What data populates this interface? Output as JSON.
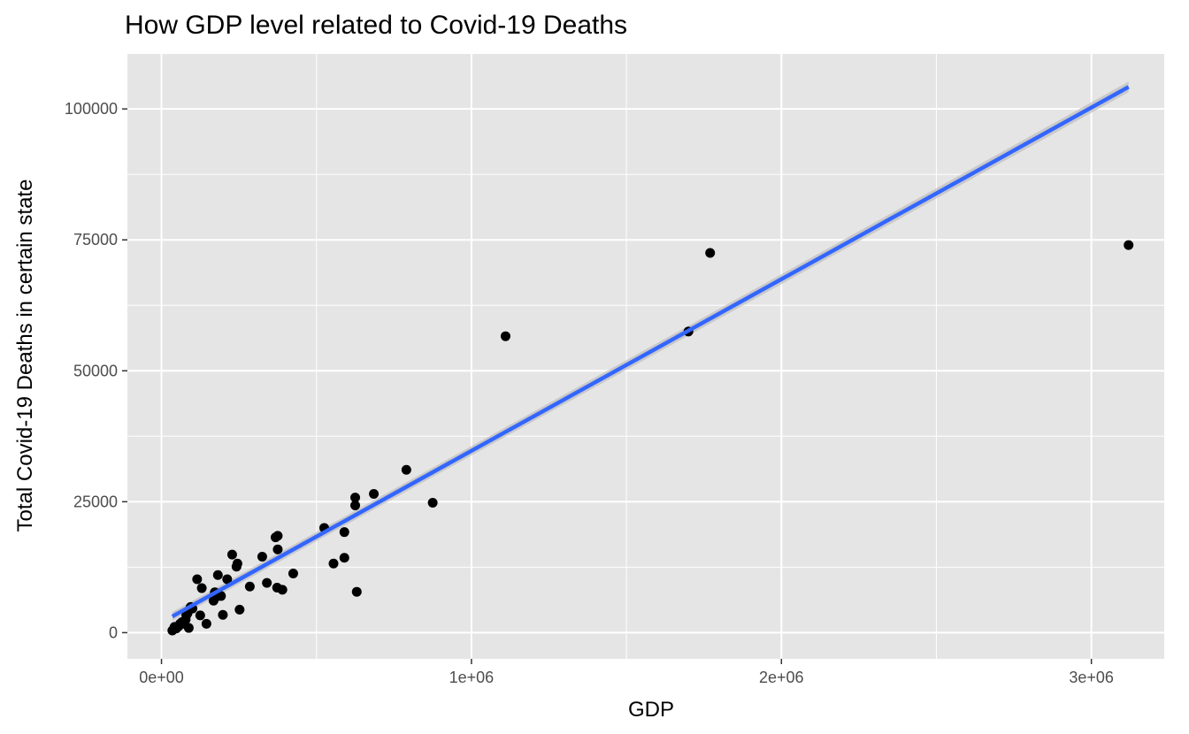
{
  "chart_data": {
    "type": "scatter",
    "title": "How GDP level related to Covid-19 Deaths",
    "xlabel": "GDP",
    "ylabel": "Total Covid-19 Deaths in certain state",
    "xlim": [
      -110000,
      3235000
    ],
    "ylim": [
      -5000,
      110500
    ],
    "x_ticks": [
      0,
      1000000,
      2000000,
      3000000
    ],
    "x_tick_labels": [
      "0e+00",
      "1e+06",
      "2e+06",
      "3e+06"
    ],
    "y_ticks": [
      0,
      25000,
      50000,
      75000,
      100000
    ],
    "y_tick_labels": [
      "0",
      "25000",
      "50000",
      "75000",
      "100000"
    ],
    "grid": true,
    "panel_background": "#e5e5e5",
    "grid_color": "#ffffff",
    "point_color": "#000000",
    "trend_color": "#3366ff",
    "ribbon_color": "#bdbdbd",
    "points": [
      [
        3120000,
        74000
      ],
      [
        1770000,
        72500
      ],
      [
        1700000,
        57500
      ],
      [
        1110000,
        56600
      ],
      [
        875000,
        24800
      ],
      [
        790000,
        31100
      ],
      [
        685000,
        26500
      ],
      [
        625000,
        25800
      ],
      [
        625000,
        24300
      ],
      [
        630000,
        7800
      ],
      [
        590000,
        19200
      ],
      [
        590000,
        14300
      ],
      [
        555000,
        13200
      ],
      [
        525000,
        20000
      ],
      [
        425000,
        11300
      ],
      [
        390000,
        8200
      ],
      [
        375000,
        18500
      ],
      [
        375000,
        15900
      ],
      [
        368000,
        18200
      ],
      [
        373000,
        8600
      ],
      [
        340000,
        9500
      ],
      [
        325000,
        14500
      ],
      [
        285000,
        8800
      ],
      [
        252000,
        4400
      ],
      [
        245000,
        13200
      ],
      [
        242000,
        12600
      ],
      [
        228000,
        14900
      ],
      [
        212000,
        10200
      ],
      [
        198000,
        3400
      ],
      [
        192000,
        7000
      ],
      [
        182000,
        11000
      ],
      [
        178000,
        6900
      ],
      [
        172000,
        7700
      ],
      [
        168000,
        6100
      ],
      [
        145000,
        1700
      ],
      [
        130000,
        8500
      ],
      [
        125000,
        3300
      ],
      [
        115000,
        10200
      ],
      [
        100000,
        4600
      ],
      [
        94000,
        4900
      ],
      [
        88000,
        900
      ],
      [
        84000,
        3700
      ],
      [
        80000,
        3300
      ],
      [
        78000,
        2500
      ],
      [
        72000,
        1700
      ],
      [
        66000,
        2000
      ],
      [
        60000,
        1700
      ],
      [
        55000,
        1200
      ],
      [
        48000,
        800
      ],
      [
        42000,
        1100
      ],
      [
        35000,
        400
      ]
    ],
    "trend": {
      "x_start": 35000,
      "y_start": 3100,
      "x_end": 3120000,
      "y_end": 104200
    }
  }
}
